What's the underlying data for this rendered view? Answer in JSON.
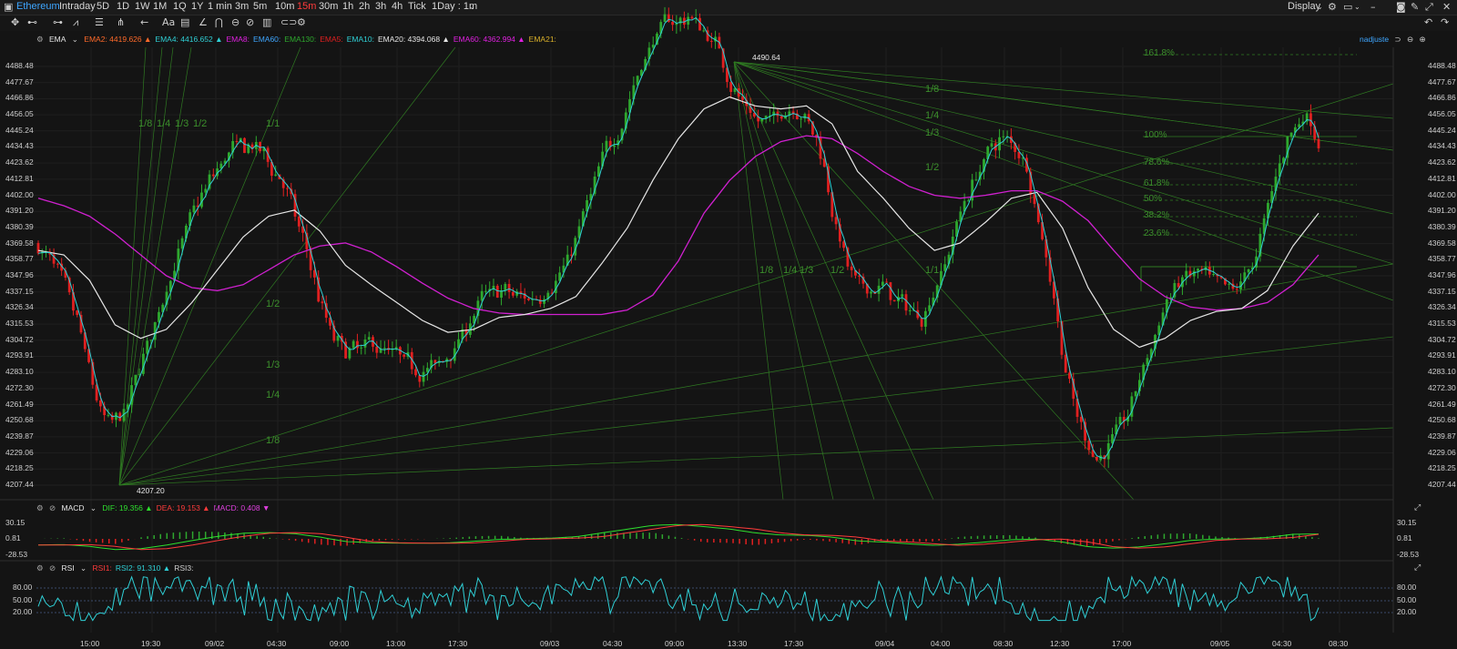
{
  "app": {
    "symbol": "Ethereum",
    "display_label": "Display",
    "adjust_label": "nadjuste",
    "period_select": "1Day : 1m"
  },
  "timeframes": [
    "Intraday",
    "5D",
    "1D",
    "1W",
    "1M",
    "1Q",
    "1Y",
    "1 min",
    "3m",
    "5m",
    "10m",
    "15m",
    "30m",
    "1h",
    "2h",
    "3h",
    "4h",
    "Tick"
  ],
  "active_timeframe": "15m",
  "ema_legend": {
    "name": "EMA",
    "items": [
      {
        "label": "EMA2:",
        "value": "4419.626",
        "arrow": "▲",
        "color": "#ff6a2a"
      },
      {
        "label": "EMA4:",
        "value": "4416.652",
        "arrow": "▲",
        "color": "#2fd0d6"
      },
      {
        "label": "EMA8:",
        "value": "",
        "arrow": "",
        "color": "#e020e0"
      },
      {
        "label": "EMA60:",
        "value": "",
        "arrow": "",
        "color": "#3ea6ff"
      },
      {
        "label": "EMA130:",
        "value": "",
        "arrow": "",
        "color": "#2ea82e"
      },
      {
        "label": "EMA5:",
        "value": "",
        "arrow": "",
        "color": "#e02020"
      },
      {
        "label": "EMA10:",
        "value": "",
        "arrow": "",
        "color": "#2fd0d6"
      },
      {
        "label": "EMA20:",
        "value": "4394.068",
        "arrow": "▲",
        "color": "#e6e6e6"
      },
      {
        "label": "EMA60:",
        "value": "4362.994",
        "arrow": "▲",
        "color": "#e020e0"
      },
      {
        "label": "EMA21:",
        "value": "",
        "arrow": "",
        "color": "#d9b02a"
      }
    ]
  },
  "macd_legend": {
    "name": "MACD",
    "items": [
      {
        "label": "DIF:",
        "value": "19.356",
        "arrow": "▲",
        "color": "#2ee02e"
      },
      {
        "label": "DEA:",
        "value": "19.153",
        "arrow": "▲",
        "color": "#ff3b3b"
      },
      {
        "label": "MACD:",
        "value": "0.408",
        "arrow": "▼",
        "color": "#e040e0"
      }
    ]
  },
  "rsi_legend": {
    "name": "RSI",
    "items": [
      {
        "label": "RSI1:",
        "value": "",
        "arrow": "",
        "color": "#ff3b3b"
      },
      {
        "label": "RSI2:",
        "value": "91.310",
        "arrow": "▲",
        "color": "#2fd0d6"
      },
      {
        "label": "RSI3:",
        "value": "",
        "arrow": "",
        "color": "#cfcfcf"
      }
    ]
  },
  "price_axis": [
    "4488.48",
    "4477.67",
    "4466.86",
    "4456.05",
    "4445.24",
    "4434.43",
    "4423.62",
    "4412.81",
    "4402.00",
    "4391.20",
    "4380.39",
    "4369.58",
    "4358.77",
    "4347.96",
    "4337.15",
    "4326.34",
    "4315.53",
    "4304.72",
    "4293.91",
    "4283.10",
    "4272.30",
    "4261.49",
    "4250.68",
    "4239.87",
    "4229.06",
    "4218.25",
    "4207.44"
  ],
  "macd_axis": [
    "30.15",
    "0.81",
    "-28.53"
  ],
  "rsi_axis": [
    "80.00",
    "50.00",
    "20.00"
  ],
  "time_axis": [
    "15:00",
    "19:30",
    "09/02",
    "04:30",
    "09:00",
    "13:00",
    "17:30",
    "09/03",
    "04:30",
    "09:00",
    "13:30",
    "17:30",
    "09/04",
    "04:00",
    "08:30",
    "12:30",
    "17:00",
    "09/05",
    "04:30",
    "08:30"
  ],
  "annotations": {
    "high": "4490.64",
    "low": "4207.20"
  },
  "fib_levels": [
    "161.8%",
    "100%",
    "78.6%",
    "61.8%",
    "50%",
    "38.2%",
    "23.6%"
  ],
  "fan_labels_left_top": [
    "1/8",
    "1/4",
    "1/3",
    "1/2",
    "1/1"
  ],
  "fan_labels_left_bottom": [
    "1/2",
    "1/3",
    "1/4",
    "1/8"
  ],
  "fan_labels_right_top": [
    "1/8",
    "1/4",
    "1/3",
    "1/2",
    "1/1"
  ],
  "fan_labels_mid": [
    "1/8",
    "1/4",
    "1/3",
    "1/2",
    "1/1"
  ],
  "colors": {
    "up": "#2ea82e",
    "down": "#e02020",
    "bg": "#141414",
    "grid": "#262626",
    "fan": "#2f7a22"
  },
  "chart_data": {
    "type": "candlestick",
    "ylim": [
      4200,
      4495
    ],
    "ema20_sketch": [
      4365,
      4362,
      4345,
      4315,
      4306,
      4312,
      4330,
      4352,
      4374,
      4388,
      4392,
      4378,
      4355,
      4342,
      4330,
      4318,
      4310,
      4312,
      4320,
      4322,
      4326,
      4334,
      4356,
      4380,
      4412,
      4440,
      4460,
      4468,
      4462,
      4460,
      4462,
      4450,
      4418,
      4400,
      4380,
      4365,
      4370,
      4384,
      4400,
      4404,
      4380,
      4340,
      4312,
      4300,
      4306,
      4318,
      4324,
      4326,
      4338,
      4368,
      4390
    ],
    "ema60_sketch": [
      4400,
      4395,
      4388,
      4376,
      4362,
      4348,
      4340,
      4338,
      4342,
      4352,
      4362,
      4368,
      4370,
      4364,
      4354,
      4343,
      4333,
      4326,
      4323,
      4322,
      4322,
      4322,
      4322,
      4325,
      4335,
      4358,
      4390,
      4412,
      4428,
      4438,
      4442,
      4440,
      4430,
      4418,
      4408,
      4402,
      4400,
      4402,
      4405,
      4405,
      4398,
      4385,
      4365,
      4346,
      4334,
      4327,
      4325,
      4326,
      4330,
      4342,
      4362
    ]
  }
}
